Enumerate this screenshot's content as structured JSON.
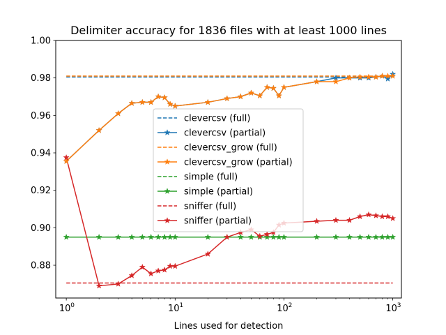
{
  "chart_data": {
    "type": "line",
    "title": "Delimiter accuracy for 1836 files with at least 1000 lines",
    "xlabel": "Lines used for detection",
    "ylabel": "",
    "xscale": "log",
    "xlim": [
      0.8,
      1200
    ],
    "ylim": [
      0.8625,
      1.0
    ],
    "xticks": [
      {
        "value": 1,
        "label": "10",
        "exp": "0"
      },
      {
        "value": 10,
        "label": "10",
        "exp": "1"
      },
      {
        "value": 100,
        "label": "10",
        "exp": "2"
      },
      {
        "value": 1000,
        "label": "10",
        "exp": "3"
      }
    ],
    "yticks": [
      "0.88",
      "0.90",
      "0.92",
      "0.94",
      "0.96",
      "0.98",
      "1.00"
    ],
    "grid": false,
    "legend_position": "center",
    "x": [
      1,
      2,
      3,
      4,
      5,
      6,
      7,
      8,
      9,
      10,
      20,
      30,
      40,
      50,
      60,
      70,
      80,
      90,
      100,
      200,
      300,
      400,
      500,
      600,
      700,
      800,
      900,
      1000
    ],
    "series": [
      {
        "name": "clevercsv (full)",
        "color": "#1f77b4",
        "style": "dashed",
        "constant": 0.9805
      },
      {
        "name": "clevercsv (partial)",
        "color": "#1f77b4",
        "style": "solid",
        "marker": "star",
        "values": [
          0.9355,
          0.952,
          0.961,
          0.9665,
          0.967,
          0.967,
          0.97,
          0.9695,
          0.966,
          0.965,
          0.967,
          0.969,
          0.97,
          0.972,
          0.9705,
          0.975,
          0.9745,
          0.9705,
          0.975,
          0.978,
          0.98,
          0.98,
          0.98,
          0.98,
          0.9805,
          0.981,
          0.9795,
          0.982
        ]
      },
      {
        "name": "clevercsv_grow (full)",
        "color": "#ff7f0e",
        "style": "dashed",
        "constant": 0.981
      },
      {
        "name": "clevercsv_grow (partial)",
        "color": "#ff7f0e",
        "style": "solid",
        "marker": "star",
        "values": [
          0.9355,
          0.952,
          0.961,
          0.9665,
          0.967,
          0.967,
          0.97,
          0.9695,
          0.966,
          0.965,
          0.967,
          0.969,
          0.97,
          0.972,
          0.9705,
          0.975,
          0.9745,
          0.9705,
          0.975,
          0.978,
          0.978,
          0.98,
          0.9805,
          0.9805,
          0.9805,
          0.981,
          0.981,
          0.981
        ]
      },
      {
        "name": "simple (full)",
        "color": "#2ca02c",
        "style": "dashed",
        "constant": 0.895
      },
      {
        "name": "simple (partial)",
        "color": "#2ca02c",
        "style": "solid",
        "marker": "star",
        "values": [
          0.895,
          0.895,
          0.895,
          0.895,
          0.895,
          0.895,
          0.895,
          0.895,
          0.895,
          0.895,
          0.895,
          0.895,
          0.895,
          0.895,
          0.895,
          0.895,
          0.895,
          0.895,
          0.895,
          0.895,
          0.895,
          0.895,
          0.895,
          0.895,
          0.895,
          0.895,
          0.895,
          0.895
        ]
      },
      {
        "name": "sniffer (full)",
        "color": "#d62728",
        "style": "dashed",
        "constant": 0.8705
      },
      {
        "name": "sniffer (partial)",
        "color": "#d62728",
        "style": "solid",
        "marker": "star",
        "values": [
          0.9375,
          0.869,
          0.87,
          0.8745,
          0.879,
          0.8755,
          0.877,
          0.8775,
          0.8795,
          0.8795,
          0.886,
          0.895,
          0.8975,
          0.899,
          0.8955,
          0.8965,
          0.8975,
          0.9015,
          0.9025,
          0.9035,
          0.904,
          0.904,
          0.906,
          0.907,
          0.9065,
          0.906,
          0.906,
          0.905
        ]
      }
    ]
  }
}
